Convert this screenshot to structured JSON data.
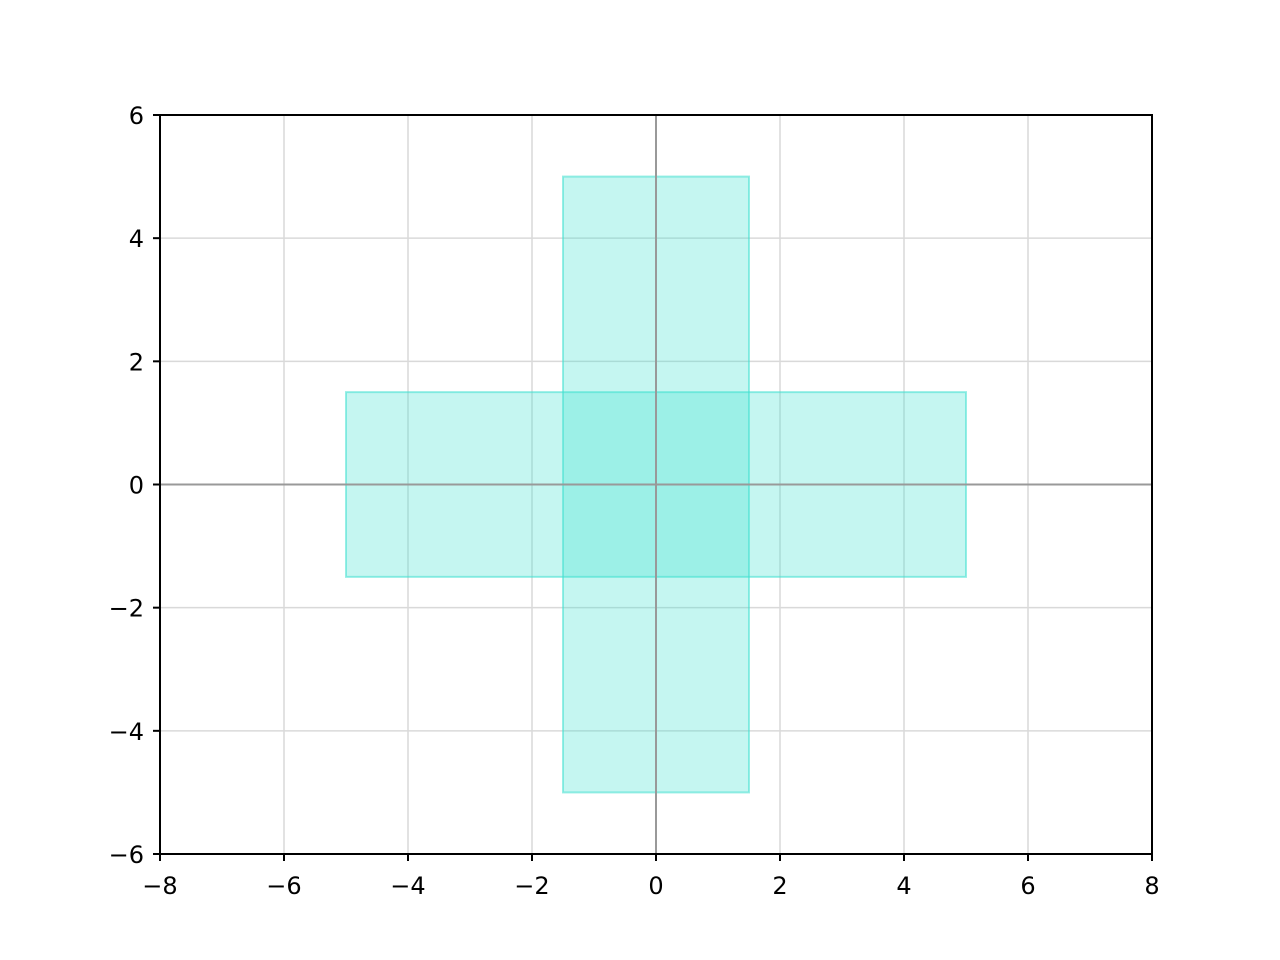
{
  "chart_data": {
    "type": "area",
    "title": "",
    "xlabel": "",
    "ylabel": "",
    "xlim": [
      -8,
      8
    ],
    "ylim": [
      -6,
      6
    ],
    "x_ticks": [
      -8,
      -6,
      -4,
      -2,
      0,
      2,
      4,
      6,
      8
    ],
    "y_ticks": [
      -6,
      -4,
      -2,
      0,
      2,
      4,
      6
    ],
    "x_tick_labels": [
      "−8",
      "−6",
      "−4",
      "−2",
      "0",
      "2",
      "4",
      "6",
      "8"
    ],
    "y_tick_labels": [
      "−6",
      "−4",
      "−2",
      "0",
      "2",
      "4",
      "6"
    ],
    "grid": true,
    "origin_axes": true,
    "rectangles": [
      {
        "x_range": [
          -5,
          5
        ],
        "y_range": [
          -1.5,
          1.5
        ],
        "color": "#40e0d0",
        "fill_alpha": 0.3,
        "orientation": "horizontal"
      },
      {
        "x_range": [
          -1.5,
          1.5
        ],
        "y_range": [
          -5,
          5
        ],
        "color": "#40e0d0",
        "fill_alpha": 0.3,
        "orientation": "vertical"
      }
    ],
    "colors": {
      "fill": "#40e0d0",
      "grid": "#d9d9d9",
      "origin_line": "#999999",
      "axes": "#000000"
    }
  }
}
